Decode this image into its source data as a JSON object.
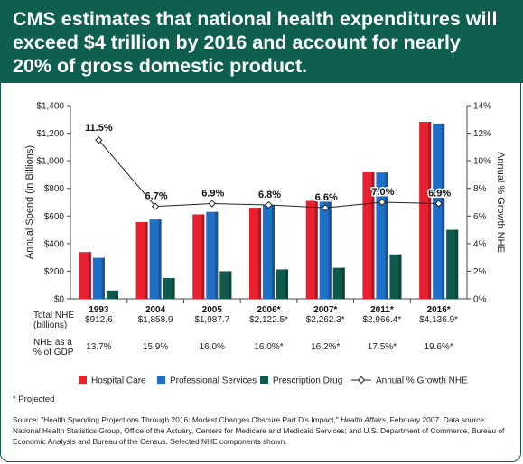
{
  "header": {
    "title": "CMS estimates that national health expenditures will exceed $4 trillion by 2016 and account for nearly 20% of gross domestic product."
  },
  "chart_data": {
    "type": "bar",
    "categories": [
      "1993",
      "2004",
      "2005",
      "2006*",
      "2007*",
      "2011*",
      "2016*"
    ],
    "ylabel": "Annual Spend (in Billions)",
    "y2label": "Annual % Growth NHE",
    "ylim": [
      0,
      1400
    ],
    "y2lim": [
      0,
      14
    ],
    "yticks": [
      "$0",
      "$200",
      "$400",
      "$600",
      "$800",
      "$1,000",
      "$1,200",
      "$1,400"
    ],
    "y2ticks": [
      "0%",
      "2%",
      "4%",
      "6%",
      "8%",
      "10%",
      "12%",
      "14%"
    ],
    "grid": false,
    "legend_position": "bottom",
    "series": [
      {
        "name": "Hospital Care",
        "color": "#e8202f",
        "values": [
          339,
          556,
          612,
          660,
          710,
          921,
          1282
        ]
      },
      {
        "name": "Professional Services",
        "color": "#1f6fc7",
        "values": [
          297,
          575,
          630,
          680,
          732,
          915,
          1270
        ]
      },
      {
        "name": "Prescription Drug",
        "color": "#0f5a4c",
        "values": [
          60,
          150,
          200,
          213,
          225,
          322,
          500
        ]
      }
    ],
    "line_series": {
      "name": "Annual % Growth NHE",
      "values": [
        11.5,
        6.7,
        6.9,
        6.8,
        6.6,
        7.0,
        6.9
      ],
      "labels": [
        "11.5%",
        "6.7%",
        "6.9%",
        "6.8%",
        "6.6%",
        "7.0%",
        "6.9%"
      ]
    },
    "table": {
      "rows": [
        {
          "label_lines": [
            "Total NHE",
            "(billions)"
          ],
          "values": [
            "$912.6",
            "$1,858.9",
            "$1,987.7",
            "$2,122.5*",
            "$2,262.3*",
            "$2,966.4*",
            "$4,136.9*"
          ]
        },
        {
          "label_lines": [
            "NHE as a",
            "% of GDP"
          ],
          "values": [
            "13.7%",
            "15.9%",
            "16.0%",
            "16.0%*",
            "16.2%*",
            "17.5%*",
            "19.6%*"
          ]
        }
      ]
    }
  },
  "footnote": "* Projected",
  "source": {
    "prefix": "Source: \"Health Spending Projections Through 2016: Modest Changes Obscure Part D's Impact,\" ",
    "journal": "Health Affairs",
    "suffix": ", February 2007. Data source: National Health Statistics Group, Office of the Actuary, Centers for Medicare and Medicaid Services; and U.S. Department of Commerce, Bureau of Economic Analysis and Bureau of the Census. Selected NHE components shown."
  }
}
